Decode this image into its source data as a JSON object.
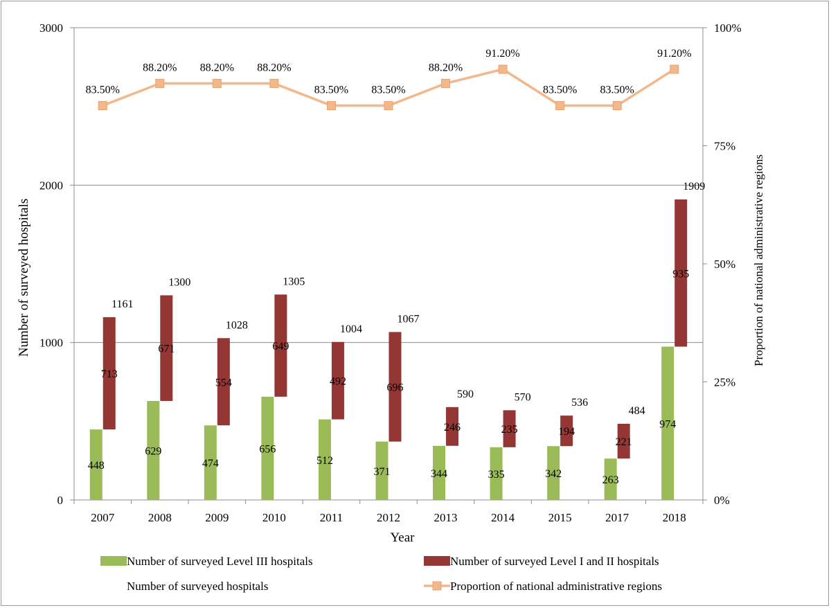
{
  "chart_data": {
    "type": "bar",
    "categories": [
      "2007",
      "2008",
      "2009",
      "2010",
      "2011",
      "2012",
      "2013",
      "2014",
      "2015",
      "2017",
      "2018"
    ],
    "series": [
      {
        "name": "Number of surveyed Level III hospitals",
        "type": "bar",
        "color": "#9bbb59",
        "values": [
          448,
          629,
          474,
          656,
          512,
          371,
          344,
          335,
          342,
          263,
          974
        ]
      },
      {
        "name": "Number of surveyed Level I and II hospitals",
        "type": "bar",
        "color": "#943634",
        "values": [
          713,
          671,
          554,
          649,
          492,
          696,
          246,
          235,
          194,
          221,
          935
        ]
      },
      {
        "name": "Number of surveyed hospitals",
        "type": "total",
        "color": "#ffffff",
        "values": [
          1161,
          1300,
          1028,
          1305,
          1004,
          1067,
          590,
          570,
          536,
          484,
          1909
        ]
      },
      {
        "name": "Proportion of national administrative regions",
        "type": "line",
        "axis": "right",
        "color": "#f2b88b",
        "values": [
          83.5,
          88.2,
          88.2,
          88.2,
          83.5,
          83.5,
          88.2,
          91.2,
          83.5,
          83.5,
          91.2
        ],
        "labels": [
          "83.50%",
          "88.20%",
          "88.20%",
          "88.20%",
          "83.50%",
          "83.50%",
          "88.20%",
          "91.20%",
          "83.50%",
          "83.50%",
          "91.20%"
        ]
      }
    ],
    "xlabel": "Year",
    "ylabel": "Number of surveyed hospitals",
    "y2label": "Proportion of national administrative regions",
    "ylim": [
      0,
      3000
    ],
    "y2lim": [
      0,
      100
    ],
    "yticks": [
      "0",
      "1000",
      "2000",
      "3000"
    ],
    "y2ticks": [
      "0%",
      "25%",
      "50%",
      "75%",
      "100%"
    ],
    "grid": true,
    "legend_position": "bottom"
  }
}
